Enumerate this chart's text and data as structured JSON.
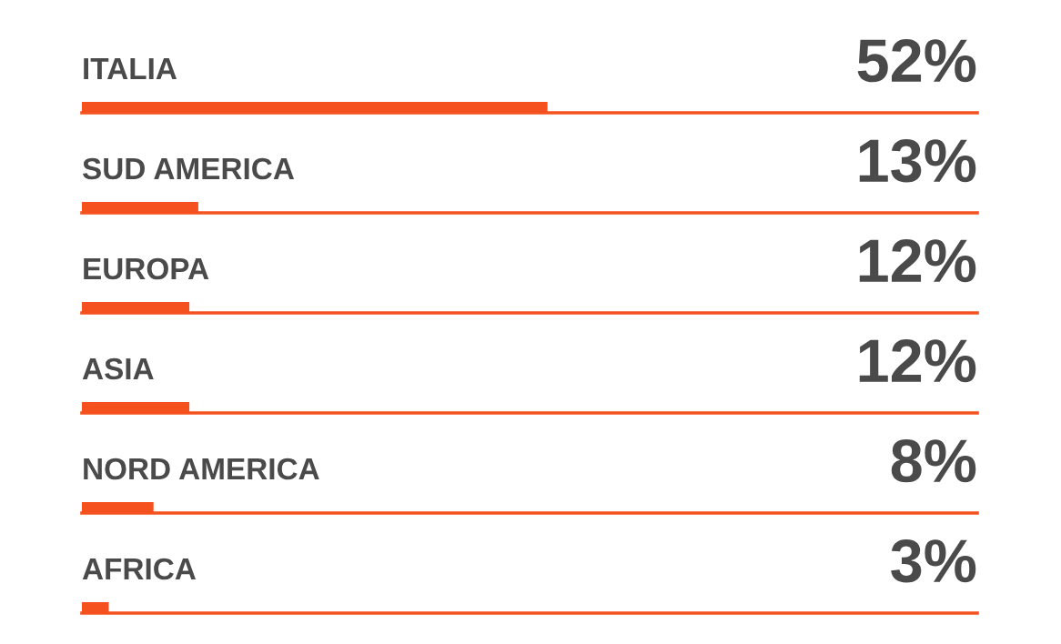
{
  "chart_data": {
    "type": "bar",
    "orientation": "horizontal",
    "categories": [
      "ITALIA",
      "SUD AMERICA",
      "EUROPA",
      "ASIA",
      "NORD AMERICA",
      "AFRICA"
    ],
    "values": [
      52,
      13,
      12,
      12,
      8,
      3
    ],
    "value_labels": [
      "52%",
      "13%",
      "12%",
      "12%",
      "8%",
      "3%"
    ],
    "xlim": [
      0,
      100
    ],
    "color": "#f4511e",
    "legend": false
  }
}
